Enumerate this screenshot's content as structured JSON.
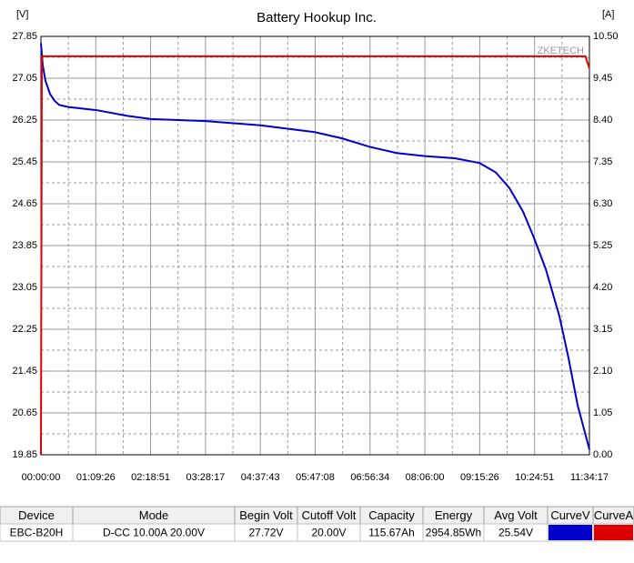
{
  "chart_data": {
    "type": "line",
    "title": "Battery Hookup Inc.",
    "y_label": "[V]",
    "y2_label": "[A]",
    "annotation": "ZKETECH",
    "xlim": [
      0,
      41657
    ],
    "xticks": [
      {
        "value": 0,
        "label": "00:00:00"
      },
      {
        "value": 4166,
        "label": "01:09:26"
      },
      {
        "value": 8331,
        "label": "02:18:51"
      },
      {
        "value": 12497,
        "label": "03:28:17"
      },
      {
        "value": 16663,
        "label": "04:37:43"
      },
      {
        "value": 20828,
        "label": "05:47:08"
      },
      {
        "value": 24994,
        "label": "06:56:34"
      },
      {
        "value": 29160,
        "label": "08:06:00"
      },
      {
        "value": 33326,
        "label": "09:15:26"
      },
      {
        "value": 37491,
        "label": "10:24:51"
      },
      {
        "value": 41657,
        "label": "11:34:17"
      }
    ],
    "ylim": [
      19.85,
      27.85
    ],
    "yticks": [
      19.85,
      20.65,
      21.45,
      22.25,
      23.05,
      23.85,
      24.65,
      25.45,
      26.25,
      27.05,
      27.85
    ],
    "y2lim": [
      0,
      10.5
    ],
    "y2ticks": [
      {
        "value": 0,
        "label": "0.00"
      },
      1.05,
      {
        "value": 2.1,
        "label": "2.10"
      },
      3.15,
      {
        "value": 4.2,
        "label": "4.20"
      },
      5.25,
      {
        "value": 6.3,
        "label": "6.30"
      },
      7.35,
      {
        "value": 8.4,
        "label": "8.40"
      },
      9.45,
      {
        "value": 10.5,
        "label": "10.50"
      }
    ],
    "grid": true,
    "series": [
      {
        "color": "#0000cc",
        "x": [
          0,
          138,
          345,
          691,
          1036,
          1382,
          2072,
          4214,
          6563,
          8359,
          12504,
          16649,
          20794,
          22867,
          24939,
          27012,
          29154,
          31433,
          33298,
          34541,
          35578,
          36614,
          37443,
          38341,
          39377,
          40068,
          40759,
          41657
        ],
        "values": [
          27.72,
          27.3,
          27.0,
          26.75,
          26.62,
          26.54,
          26.5,
          26.44,
          26.33,
          26.27,
          26.23,
          26.15,
          26.02,
          25.9,
          25.74,
          25.62,
          25.56,
          25.52,
          25.43,
          25.25,
          24.95,
          24.5,
          24.0,
          23.4,
          22.5,
          21.7,
          20.8,
          19.95
        ]
      },
      {
        "color": "#dd0000",
        "axis": "y2",
        "x": [
          0,
          70,
          41350,
          41657
        ],
        "values": [
          0,
          10.0,
          10.0,
          9.7
        ]
      }
    ]
  },
  "table": {
    "headers": [
      "Device",
      "Mode",
      "Begin Volt",
      "Cutoff Volt",
      "Capacity",
      "Energy",
      "Avg Volt",
      "CurveV",
      "CurveA"
    ],
    "rows": [
      [
        "EBC-B20H",
        "D-CC  10.00A  20.00V",
        "27.72V",
        "20.00V",
        "115.67Ah",
        "2954.85Wh",
        "25.54V"
      ]
    ]
  }
}
